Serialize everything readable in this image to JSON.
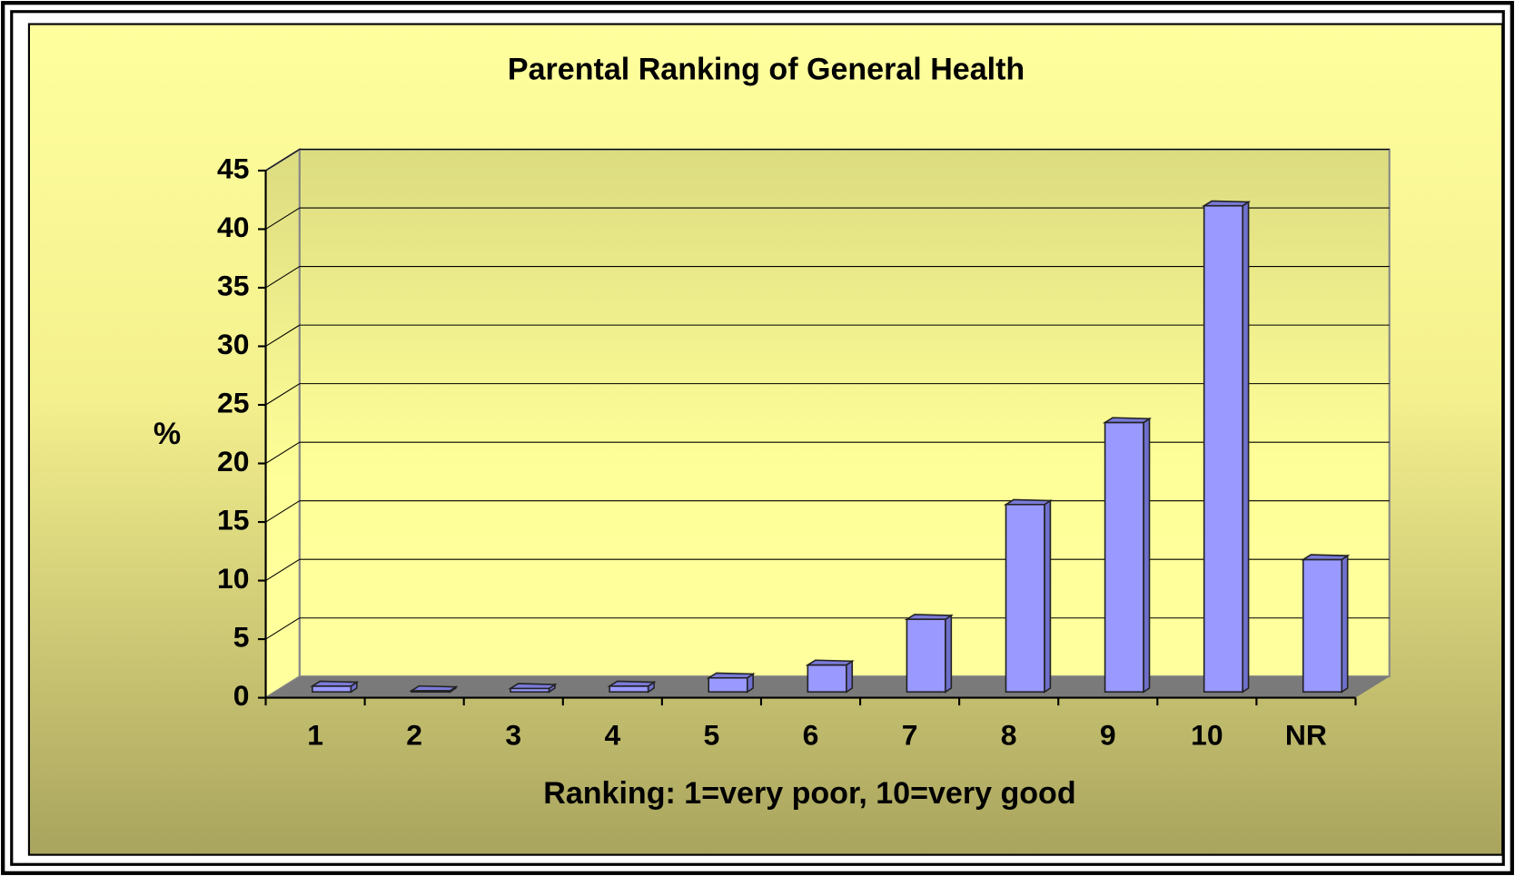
{
  "chart_data": {
    "type": "bar",
    "title": "Parental Ranking of General Health",
    "xlabel": "Ranking: 1=very poor, 10=very good",
    "ylabel": "%",
    "categories": [
      "1",
      "2",
      "3",
      "4",
      "5",
      "6",
      "7",
      "8",
      "9",
      "10",
      "NR"
    ],
    "values": [
      0.5,
      0.1,
      0.3,
      0.5,
      1.2,
      2.3,
      6.2,
      16,
      23,
      41.5,
      11.3
    ],
    "color": "#9999ff",
    "ylim": [
      0,
      45
    ],
    "yticks": [
      0,
      5,
      10,
      15,
      20,
      25,
      30,
      35,
      40,
      45
    ],
    "grid": true
  }
}
